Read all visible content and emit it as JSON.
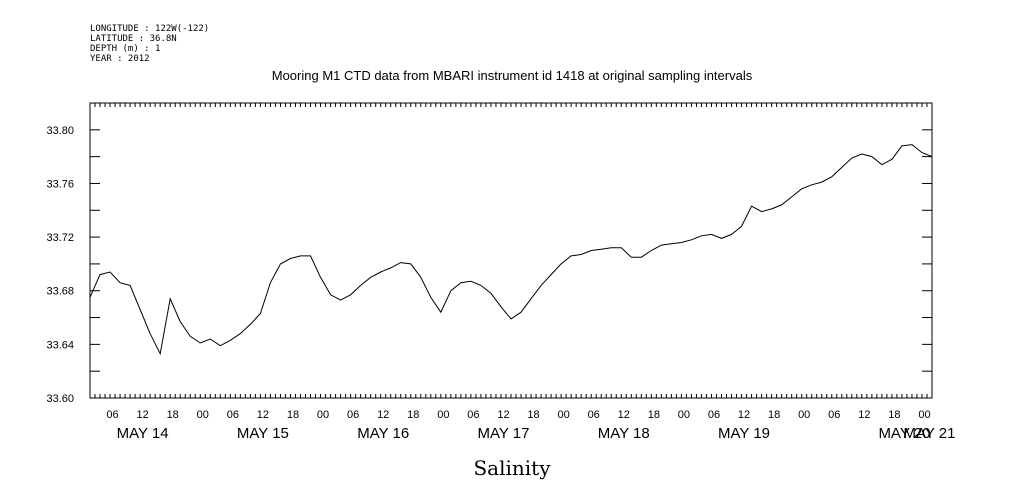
{
  "header": {
    "lines": [
      "LONGITUDE : 122W(-122)",
      "LATITUDE : 36.8N",
      "DEPTH (m) : 1",
      "YEAR : 2012"
    ]
  },
  "chart_data": {
    "type": "line",
    "title": "Mooring M1 CTD data from MBARI instrument id 1418 at original sampling intervals",
    "xlabel": "Salinity",
    "ylabel": "",
    "ylim": [
      33.6,
      33.82
    ],
    "y_ticks": [
      "33.60",
      "33.64",
      "33.68",
      "33.72",
      "33.76",
      "33.80"
    ],
    "xlim": [
      "2012-05-14T01:30",
      "2012-05-21T01:30"
    ],
    "x_hour_ticks": [
      "06",
      "12",
      "18",
      "00",
      "06",
      "12",
      "18",
      "00",
      "06",
      "12",
      "18",
      "00",
      "06",
      "12",
      "18",
      "00",
      "06",
      "12",
      "18",
      "00",
      "06",
      "12",
      "18",
      "00",
      "06",
      "12",
      "18",
      "00"
    ],
    "day_labels": [
      "MAY 14",
      "MAY 15",
      "MAY 16",
      "MAY 17",
      "MAY 18",
      "MAY 19",
      "MAY 20",
      "MAY 21"
    ],
    "grid": false,
    "legend": "none",
    "line_color": "#000000",
    "series": [
      {
        "x_hours": [
          0,
          2,
          4,
          6,
          8,
          10,
          12,
          14,
          16,
          18,
          20,
          22,
          24,
          26,
          28,
          30,
          32,
          34,
          36,
          38,
          40,
          42,
          44,
          46,
          48,
          50,
          52,
          54,
          56,
          58,
          60,
          62,
          64,
          66,
          68,
          70,
          72,
          74,
          76,
          78,
          80,
          82,
          84,
          86,
          88,
          90,
          92,
          94,
          96,
          98,
          100,
          102,
          104,
          106,
          108,
          110,
          112,
          114,
          116,
          118,
          120,
          122,
          124,
          126,
          128,
          130,
          132,
          134,
          136,
          138,
          140,
          142,
          144,
          146,
          148,
          150,
          152,
          154,
          156,
          158,
          160,
          162,
          164,
          166,
          168
        ],
        "values": [
          33.675,
          33.692,
          33.694,
          33.686,
          33.684,
          33.666,
          33.648,
          33.633,
          33.674,
          33.657,
          33.646,
          33.641,
          33.644,
          33.639,
          33.643,
          33.648,
          33.655,
          33.663,
          33.686,
          33.7,
          33.704,
          33.706,
          33.706,
          33.69,
          33.677,
          33.673,
          33.677,
          33.684,
          33.69,
          33.694,
          33.697,
          33.701,
          33.7,
          33.69,
          33.675,
          33.664,
          33.68,
          33.686,
          33.687,
          33.684,
          33.678,
          33.668,
          33.659,
          33.664,
          33.674,
          33.684,
          33.692,
          33.7,
          33.706,
          33.707,
          33.71,
          33.711,
          33.712,
          33.712,
          33.705,
          33.705,
          33.71,
          33.714,
          33.715,
          33.716,
          33.718,
          33.721,
          33.722,
          33.719,
          33.722,
          33.728,
          33.743,
          33.739,
          33.741,
          33.744,
          33.75,
          33.756,
          33.759,
          33.761,
          33.765,
          33.772,
          33.779,
          33.782,
          33.78,
          33.774,
          33.778,
          33.788,
          33.789,
          33.783,
          33.78
        ]
      }
    ]
  }
}
